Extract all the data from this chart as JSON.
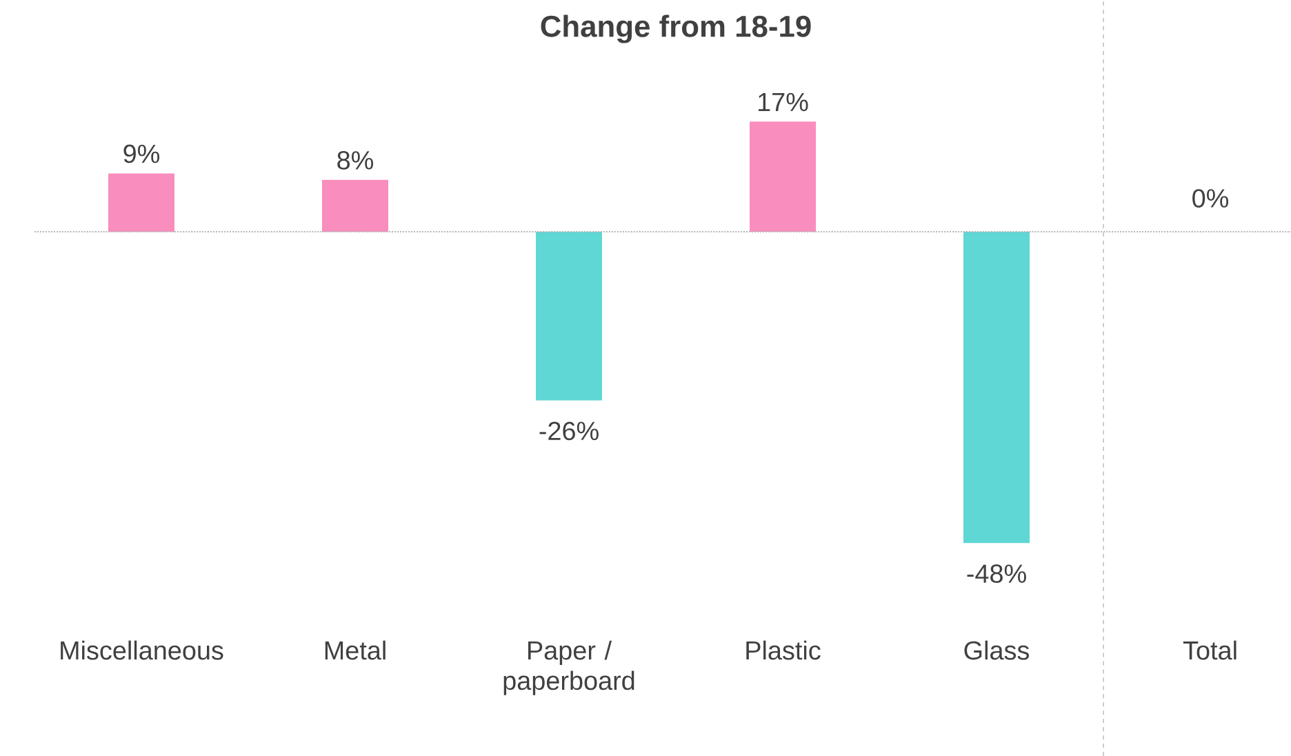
{
  "chart_data": {
    "type": "bar",
    "title": "Change from 18-19",
    "categories": [
      "Miscellaneous",
      "Metal",
      "Paper / paperboard",
      "Plastic",
      "Glass",
      "Total"
    ],
    "values": [
      9,
      8,
      -26,
      17,
      -48,
      0
    ],
    "colors": [
      "#f98dbd",
      "#f98dbd",
      "#5fd7d5",
      "#f98dbd",
      "#5fd7d5",
      "#5fd7d5"
    ],
    "value_labels": [
      "9%",
      "8%",
      "-26%",
      "17%",
      "-48%",
      "0%"
    ],
    "ref_lines": [
      {
        "axis": "y",
        "value": 0,
        "line_style": "dotted",
        "color": "#b2b2b2"
      }
    ]
  }
}
